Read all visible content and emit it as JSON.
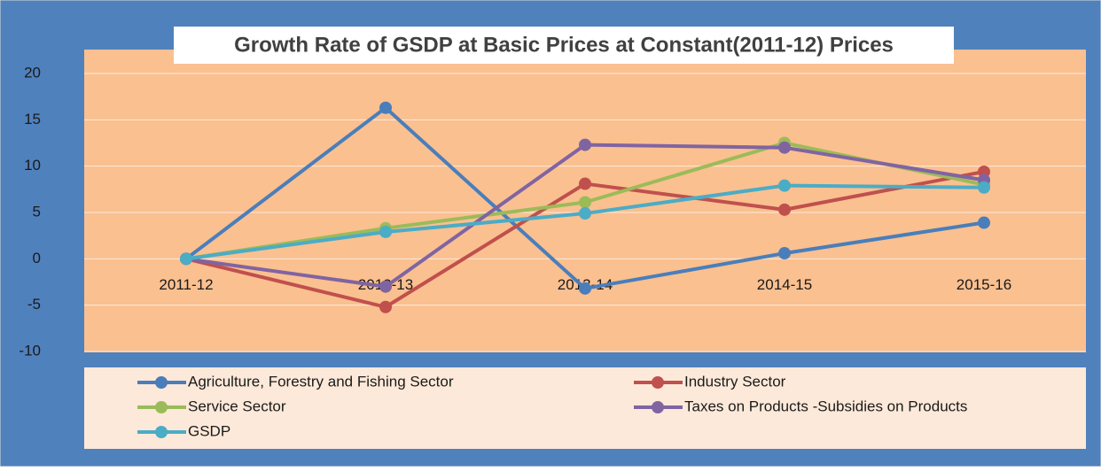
{
  "chart_data": {
    "type": "line",
    "title": "Growth Rate of GSDP at Basic  Prices at  Constant(2011-12) Prices",
    "categories": [
      "2011-12",
      "2012-13",
      "2013-14",
      "2014-15",
      "2015-16"
    ],
    "series": [
      {
        "name": "Agriculture, Forestry and Fishing Sector",
        "color": "#4a7ebb",
        "values": [
          0,
          16.3,
          -3.2,
          0.6,
          3.9
        ]
      },
      {
        "name": "Industry Sector",
        "color": "#c0504d",
        "values": [
          0,
          -5.2,
          8.1,
          5.3,
          9.4
        ]
      },
      {
        "name": "Service Sector",
        "color": "#9bbb59",
        "values": [
          0,
          3.3,
          6.1,
          12.5,
          8.0
        ]
      },
      {
        "name": "Taxes on Products -Subsidies on Products",
        "color": "#8064a2",
        "values": [
          0,
          -3.0,
          12.3,
          12.0,
          8.5
        ]
      },
      {
        "name": "GSDP",
        "color": "#4bacc6",
        "values": [
          0,
          2.9,
          4.9,
          7.9,
          7.7
        ]
      }
    ],
    "ylim": [
      -10,
      20
    ],
    "yticks": [
      -10,
      -5,
      0,
      5,
      10,
      15,
      20
    ],
    "grid": true
  }
}
